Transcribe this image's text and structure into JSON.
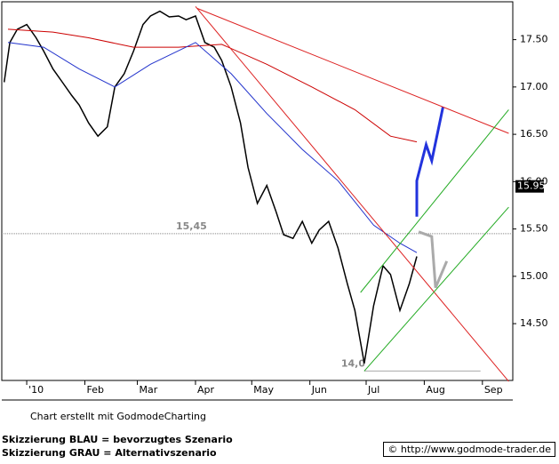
{
  "chart_data": {
    "type": "line",
    "xlim": [
      -12.3,
      260.2
    ],
    "ylim": [
      13.9,
      17.9
    ],
    "xticks": [
      {
        "value": 1,
        "label": "'10"
      },
      {
        "value": 32,
        "label": "Feb"
      },
      {
        "value": 60,
        "label": "Mar"
      },
      {
        "value": 91,
        "label": "Apr"
      },
      {
        "value": 121,
        "label": "May"
      },
      {
        "value": 152,
        "label": "Jun"
      },
      {
        "value": 182,
        "label": "Jul"
      },
      {
        "value": 213,
        "label": "Aug"
      },
      {
        "value": 244,
        "label": "Sep"
      }
    ],
    "yticks": [
      {
        "value": 14.5,
        "label": "14.50"
      },
      {
        "value": 15,
        "label": "15.00"
      },
      {
        "value": 15.5,
        "label": "15.50"
      },
      {
        "value": 16,
        "label": "16.00"
      },
      {
        "value": 16.5,
        "label": "16.50"
      },
      {
        "value": 17,
        "label": "17.00"
      },
      {
        "value": 17.5,
        "label": "17.50"
      }
    ],
    "series": [
      {
        "color": "#000000",
        "width": 1.5,
        "x": [
          -11,
          -8,
          -4,
          1,
          6,
          10,
          15,
          20,
          25,
          29,
          34,
          39,
          44,
          48,
          53,
          58,
          63,
          67,
          72,
          77,
          82,
          86,
          91,
          96,
          101,
          105,
          110,
          115,
          119,
          124,
          129,
          134,
          138,
          143,
          148,
          153,
          157,
          162,
          167,
          172,
          176,
          181,
          186,
          191,
          195,
          200,
          205,
          209
        ],
        "values": [
          17.05,
          17.47,
          17.61,
          17.66,
          17.52,
          17.38,
          17.19,
          17.05,
          16.91,
          16.81,
          16.62,
          16.48,
          16.58,
          17.0,
          17.14,
          17.38,
          17.66,
          17.75,
          17.8,
          17.74,
          17.75,
          17.71,
          17.75,
          17.47,
          17.42,
          17.28,
          17.0,
          16.62,
          16.15,
          15.77,
          15.96,
          15.68,
          15.44,
          15.4,
          15.58,
          15.35,
          15.49,
          15.58,
          15.3,
          14.92,
          14.64,
          14.08,
          14.69,
          15.11,
          15.02,
          14.64,
          14.92,
          15.21
        ]
      },
      {
        "color": "#cc0000",
        "width": 1,
        "x": [
          -9,
          15,
          34,
          58,
          82,
          105,
          129,
          153,
          176,
          195,
          209
        ],
        "values": [
          17.61,
          17.58,
          17.52,
          17.42,
          17.42,
          17.45,
          17.24,
          17.0,
          16.76,
          16.48,
          16.42
        ]
      },
      {
        "color": "#2233cc",
        "width": 1,
        "x": [
          -9,
          10,
          29,
          48,
          67,
          91,
          110,
          129,
          148,
          167,
          186,
          200,
          209
        ],
        "values": [
          17.47,
          17.42,
          17.19,
          17.0,
          17.24,
          17.47,
          17.14,
          16.72,
          16.34,
          16.01,
          15.54,
          15.35,
          15.25
        ]
      },
      {
        "color": "#2233dd",
        "width": 3,
        "x": [
          209,
          209,
          214,
          217,
          223
        ],
        "values": [
          15.63,
          16.01,
          16.39,
          16.22,
          16.79
        ]
      },
      {
        "color": "#aaaaaa",
        "width": 3,
        "x": [
          210,
          217,
          219,
          225
        ],
        "values": [
          15.47,
          15.42,
          14.88,
          15.16
        ]
      },
      {
        "color": "#dd2222",
        "width": 1,
        "x": [
          92,
          258
        ],
        "values": [
          17.83,
          16.51
        ]
      },
      {
        "color": "#dd2222",
        "width": 1,
        "x": [
          91,
          258
        ],
        "values": [
          17.85,
          13.89
        ]
      },
      {
        "color": "#22aa22",
        "width": 1,
        "x": [
          181,
          258
        ],
        "values": [
          14.0,
          15.73
        ]
      },
      {
        "color": "#22aa22",
        "width": 1,
        "x": [
          179,
          258
        ],
        "values": [
          14.83,
          16.76
        ]
      }
    ],
    "levels": [
      {
        "value": 15.45,
        "label": "15,45",
        "color": "#888888",
        "dash": true
      },
      {
        "value": 14.0,
        "label": "14,0",
        "color": "#aaaaaa",
        "dash": false,
        "x": [
          181,
          243
        ]
      }
    ],
    "last_price": {
      "value": 15.95,
      "label": "15.95"
    }
  },
  "footer": {
    "credit": "Chart erstellt mit GodmodeCharting",
    "legend": [
      "Skizzierung BLAU = bevorzugtes Szenario",
      "Skizzierung GRAU = Alternativszenario"
    ],
    "url": "© http://www.godmode-trader.de"
  }
}
